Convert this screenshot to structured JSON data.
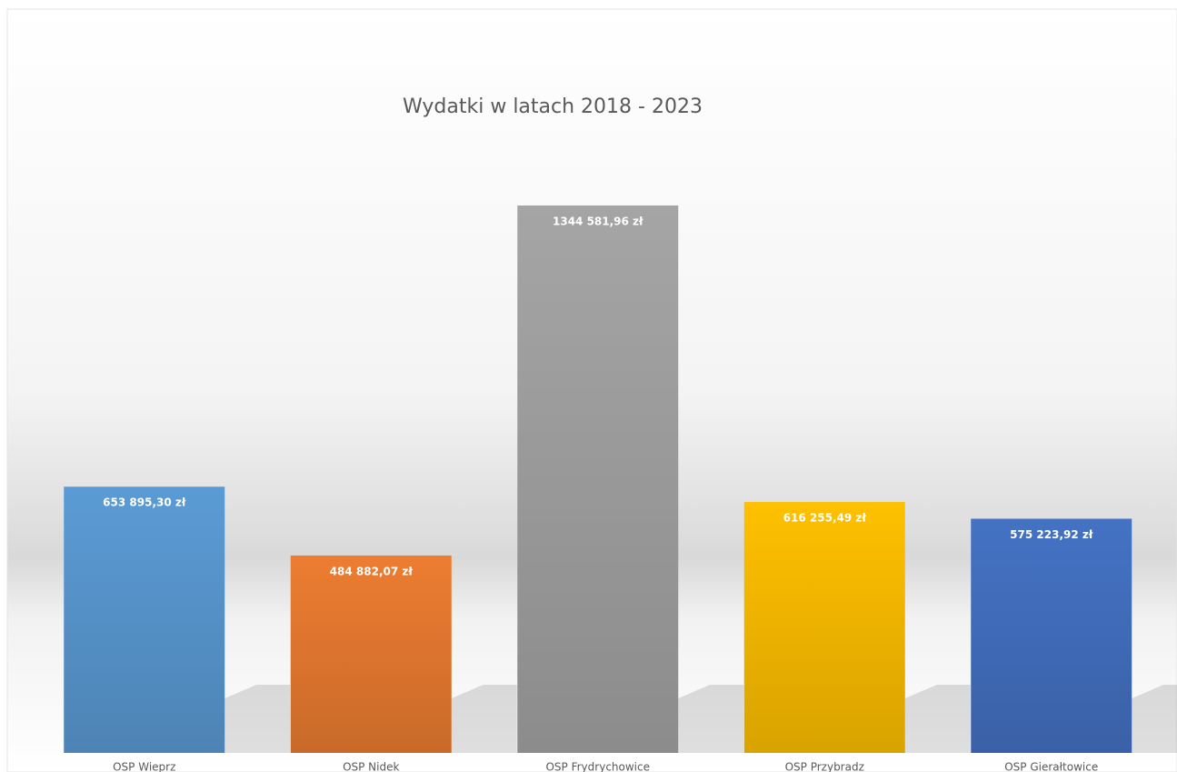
{
  "chart_data": {
    "type": "bar",
    "title": "Wydatki w latach 2018 - 2023",
    "categories": [
      "OSP Wieprz",
      "OSP Nidek",
      "OSP Frydrychowice",
      "OSP Przybradz",
      "OSP Gierałtowice"
    ],
    "values": [
      653895.3,
      484882.07,
      1344581.96,
      616255.49,
      575223.92
    ],
    "value_labels": [
      "653 895,30 zł",
      "484 882,07 zł",
      "1344 581,96 zł",
      "616 255,49 zł",
      "575 223,92 zł"
    ],
    "colors": [
      "#5b9bd5",
      "#ed7d31",
      "#a5a5a5",
      "#ffc000",
      "#4472c4"
    ]
  }
}
